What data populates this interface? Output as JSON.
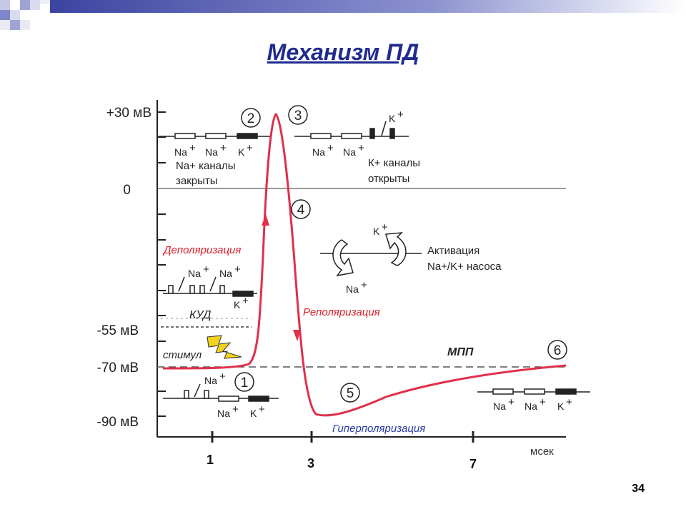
{
  "slide": {
    "title": "Механизм ПД",
    "page_number": "34"
  },
  "axis": {
    "y_labels": {
      "p30": "+30 мВ",
      "zero": "0",
      "m55": "-55 мВ",
      "m70": "-70 мВ",
      "m90": "-90 мВ"
    },
    "x_labels": {
      "t1": "1",
      "t3": "3",
      "t7": "7"
    },
    "x_unit": "мсек"
  },
  "phases": {
    "n1": "1",
    "n2": "2",
    "n3": "3",
    "n4": "4",
    "n5": "5",
    "n6": "6"
  },
  "labels": {
    "depolarization": "Деполяризация",
    "repolarization": "Реполяризация",
    "hyperpolarization": "Гиперполяризация",
    "kud": "КУД",
    "mpp": "МПП",
    "stimulus": "стимул",
    "na_closed_1": "Na+ каналы",
    "na_closed_2": "закрыты",
    "k_open_1": "К+ каналы",
    "k_open_2": "открыты",
    "pump_1": "Активация",
    "pump_2": "Na+/K+ насоса"
  },
  "ions": {
    "na": "Na",
    "k": "K",
    "plus": "+"
  },
  "colors": {
    "curve": "#e0304a",
    "title": "#1f2b8f",
    "depol_text": "#d8202c",
    "hyper_text": "#2a3aa8",
    "lightning": "#f2d21a"
  }
}
